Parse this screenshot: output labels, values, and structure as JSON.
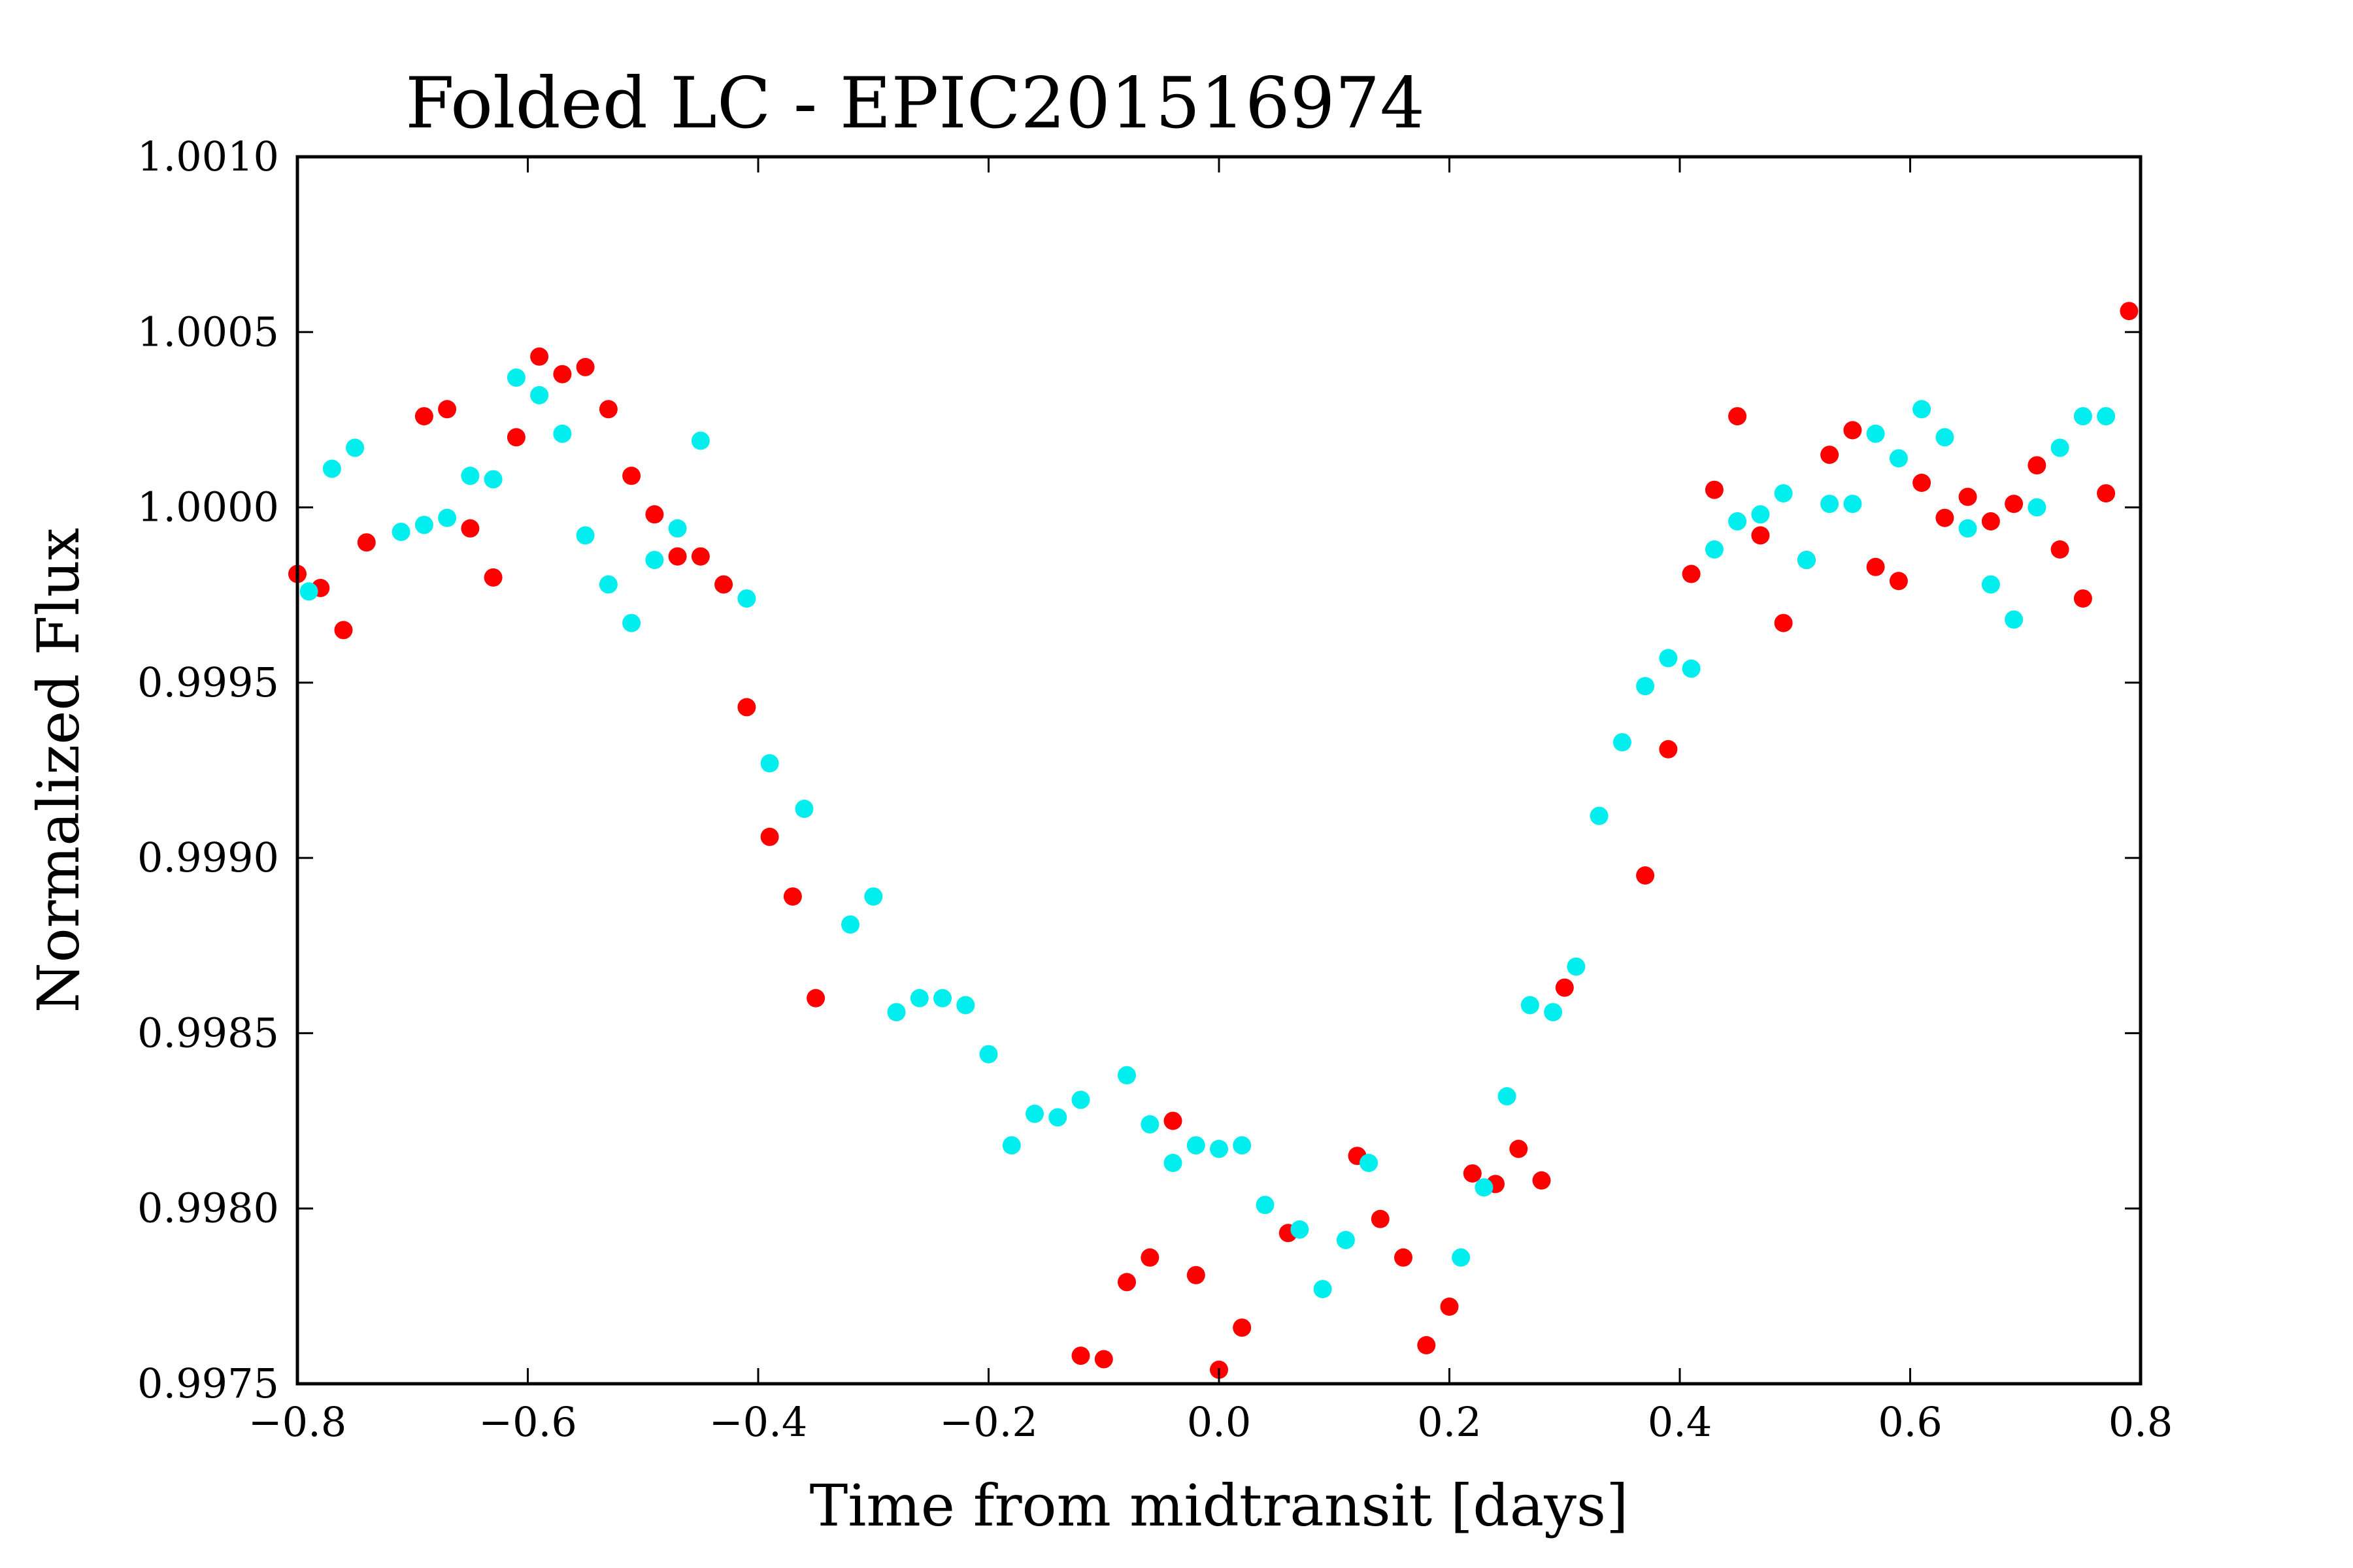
{
  "chart_data": {
    "type": "scatter",
    "title": "Folded LC - EPIC201516974",
    "xlabel": "Time from midtransit [days]",
    "ylabel": "Normalized Flux",
    "xlim": [
      -0.8,
      0.8
    ],
    "ylim": [
      0.9975,
      1.001
    ],
    "x_ticks": [
      -0.8,
      -0.6,
      -0.4,
      -0.2,
      0.0,
      0.2,
      0.4,
      0.6,
      0.8
    ],
    "x_tick_labels": [
      "−0.8",
      "−0.6",
      "−0.4",
      "−0.2",
      "0.0",
      "0.2",
      "0.4",
      "0.6",
      "0.8"
    ],
    "y_ticks": [
      0.9975,
      0.998,
      0.9985,
      0.999,
      0.9995,
      1.0,
      1.0005,
      1.001
    ],
    "y_tick_labels": [
      "0.9975",
      "0.9980",
      "0.9985",
      "0.9990",
      "0.9995",
      "1.0000",
      "1.0005",
      "1.0010"
    ],
    "grid": false,
    "series": [
      {
        "color": "#ff0000",
        "x": [
          -0.8,
          -0.78,
          -0.76,
          -0.74,
          -0.69,
          -0.67,
          -0.65,
          -0.63,
          -0.61,
          -0.59,
          -0.57,
          -0.55,
          -0.53,
          -0.51,
          -0.49,
          -0.47,
          -0.45,
          -0.43,
          -0.41,
          -0.39,
          -0.37,
          -0.35,
          -0.12,
          -0.1,
          -0.08,
          -0.06,
          -0.04,
          -0.02,
          0.0,
          0.02,
          0.06,
          0.12,
          0.14,
          0.16,
          0.18,
          0.2,
          0.22,
          0.24,
          0.26,
          0.28,
          0.3,
          0.37,
          0.39,
          0.41,
          0.43,
          0.45,
          0.47,
          0.49,
          0.51,
          0.53,
          0.55,
          0.57,
          0.59,
          0.61,
          0.63,
          0.65,
          0.67,
          0.69,
          0.71,
          0.73,
          0.75,
          0.77,
          0.79
        ],
        "y": [
          0.99981,
          0.99977,
          0.99965,
          0.9999,
          1.00026,
          1.00028,
          0.99994,
          0.9998,
          1.0002,
          1.00043,
          1.00038,
          1.0004,
          1.00028,
          1.00009,
          0.99998,
          0.99986,
          0.99986,
          0.99978,
          0.99943,
          0.99906,
          0.99889,
          0.9986,
          0.99758,
          0.99757,
          0.99779,
          0.99786,
          0.99825,
          0.99781,
          0.99754,
          0.99766,
          0.99793,
          0.99815,
          0.99797,
          0.99786,
          0.99761,
          0.99772,
          0.9981,
          0.99807,
          0.99817,
          0.99808,
          0.99863,
          0.99895,
          0.99931,
          0.99981,
          1.00005,
          1.00026,
          0.99992,
          0.99967,
          0.99985,
          1.00015,
          1.00022,
          0.99983,
          0.99979,
          1.00007,
          0.99997,
          1.00003,
          0.99996,
          1.00001,
          1.00012,
          0.99988,
          0.99974,
          1.00004,
          1.00056
        ]
      },
      {
        "color": "#00eeee",
        "x": [
          -0.79,
          -0.77,
          -0.75,
          -0.71,
          -0.69,
          -0.67,
          -0.65,
          -0.63,
          -0.61,
          -0.59,
          -0.57,
          -0.55,
          -0.53,
          -0.51,
          -0.49,
          -0.47,
          -0.45,
          -0.41,
          -0.39,
          -0.36,
          -0.32,
          -0.3,
          -0.28,
          -0.26,
          -0.24,
          -0.22,
          -0.2,
          -0.18,
          -0.16,
          -0.14,
          -0.12,
          -0.08,
          -0.06,
          -0.04,
          -0.02,
          0.0,
          0.02,
          0.04,
          0.07,
          0.09,
          0.11,
          0.13,
          0.21,
          0.23,
          0.25,
          0.27,
          0.29,
          0.31,
          0.33,
          0.35,
          0.37,
          0.39,
          0.41,
          0.43,
          0.45,
          0.47,
          0.49,
          0.51,
          0.53,
          0.55,
          0.57,
          0.59,
          0.61,
          0.63,
          0.65,
          0.67,
          0.69,
          0.71,
          0.73,
          0.75,
          0.77
        ],
        "y": [
          0.99976,
          1.00011,
          1.00017,
          0.99993,
          0.99995,
          0.99997,
          1.00009,
          1.00008,
          1.00037,
          1.00032,
          1.00021,
          0.99992,
          0.99978,
          0.99967,
          0.99985,
          0.99994,
          1.00019,
          0.99974,
          0.99927,
          0.99914,
          0.99881,
          0.99889,
          0.99856,
          0.9986,
          0.9986,
          0.99858,
          0.99844,
          0.99818,
          0.99827,
          0.99826,
          0.99831,
          0.99838,
          0.99824,
          0.99813,
          0.99818,
          0.99817,
          0.99818,
          0.99801,
          0.99794,
          0.99777,
          0.99791,
          0.99813,
          0.99786,
          0.99806,
          0.99832,
          0.99858,
          0.99856,
          0.99869,
          0.99912,
          0.99933,
          0.99949,
          0.99957,
          0.99954,
          0.99988,
          0.99996,
          0.99998,
          1.00004,
          0.99985,
          1.00001,
          1.00001,
          1.00021,
          1.00014,
          1.00028,
          1.0002,
          0.99994,
          0.99978,
          0.99968,
          1.0,
          1.00017,
          1.00026,
          1.00026
        ]
      }
    ]
  }
}
